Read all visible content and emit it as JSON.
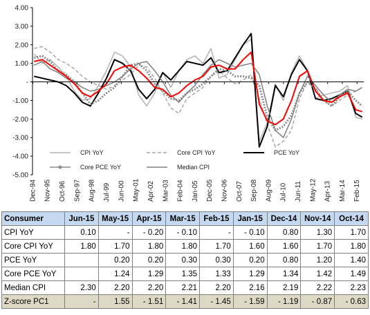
{
  "chart_data": {
    "type": "line",
    "ylim": [
      -5,
      4
    ],
    "yticks": [
      "4.00",
      "3.00",
      "2.00",
      "1.00",
      "-",
      "-1.00",
      "-2.00",
      "-3.00",
      "-4.00",
      "-5.00"
    ],
    "ytick_values": [
      4,
      3,
      2,
      1,
      0,
      -1,
      -2,
      -3,
      -4,
      -5
    ],
    "xlim": [
      1994.9,
      2015.5
    ],
    "xticks": [
      "Dec-94",
      "Nov-95",
      "Oct-96",
      "Sep-97",
      "Aug-98",
      "Jul-99",
      "Jun-00",
      "May-01",
      "Apr-02",
      "Mar-03",
      "Feb-04",
      "Jan-05",
      "Dec-05",
      "Nov-06",
      "Oct-07",
      "Sep-08",
      "Aug-09",
      "Jul-10",
      "Jun-11",
      "May-12",
      "Apr-13",
      "Mar-14",
      "Feb-15"
    ],
    "xtick_values": [
      1994.92,
      1995.83,
      1996.75,
      1997.67,
      1998.58,
      1999.5,
      2000.42,
      2001.33,
      2002.25,
      2003.17,
      2004.08,
      2005.0,
      2005.92,
      2006.83,
      2007.75,
      2008.67,
      2009.58,
      2010.5,
      2011.42,
      2012.33,
      2013.25,
      2014.17,
      2015.08
    ],
    "grid": false,
    "legend_position": "bottom-left",
    "series": [
      {
        "name": "CPI YoY",
        "color": "#b3b3b3",
        "dash": "solid",
        "x": [
          1995,
          1995.5,
          1996,
          1996.5,
          1997,
          1997.5,
          1998,
          1998.5,
          1999,
          1999.5,
          2000,
          2000.5,
          2001,
          2001.5,
          2002,
          2002.5,
          2003,
          2003.5,
          2004,
          2004.5,
          2005,
          2005.5,
          2006,
          2006.5,
          2007,
          2007.5,
          2008,
          2008.5,
          2009,
          2009.5,
          2010,
          2010.5,
          2011,
          2011.5,
          2012,
          2012.5,
          2013,
          2013.5,
          2014,
          2014.5,
          2015,
          2015.4
        ],
        "y": [
          1.5,
          1.0,
          1.2,
          0.8,
          0.3,
          -0.5,
          -1.0,
          -0.9,
          -0.2,
          0.6,
          1.6,
          1.4,
          0.8,
          -0.7,
          -1.3,
          -0.6,
          0.5,
          -0.3,
          0.6,
          1.2,
          1.4,
          1.0,
          1.8,
          0.2,
          0.4,
          1.2,
          2.0,
          2.3,
          -3.2,
          -2.2,
          -0.1,
          -1.0,
          0.5,
          1.4,
          0.6,
          -0.9,
          -0.7,
          -0.6,
          -0.5,
          -0.2,
          -1.9,
          -2.0
        ]
      },
      {
        "name": "Core CPI YoY",
        "color": "#a6a6a6",
        "dash": "dashed",
        "x": [
          1995,
          1995.5,
          1996,
          1996.5,
          1997,
          1997.5,
          1998,
          1998.5,
          1999,
          1999.5,
          2000,
          2000.5,
          2001,
          2001.5,
          2002,
          2002.5,
          2003,
          2003.5,
          2004,
          2004.5,
          2005,
          2005.5,
          2006,
          2006.5,
          2007,
          2007.5,
          2008,
          2008.5,
          2009,
          2009.5,
          2010,
          2010.5,
          2011,
          2011.5,
          2012,
          2012.5,
          2013,
          2013.5,
          2014,
          2014.5,
          2015,
          2015.4
        ],
        "y": [
          1.8,
          1.9,
          1.6,
          1.2,
          1.0,
          0.7,
          0.3,
          0.0,
          -0.2,
          -0.4,
          -0.2,
          0.1,
          0.4,
          0.9,
          0.8,
          0.2,
          -0.6,
          -1.4,
          -1.7,
          -0.9,
          -0.6,
          -0.3,
          0.3,
          0.6,
          0.2,
          -0.1,
          0.1,
          0.4,
          -0.9,
          -2.3,
          -3.5,
          -3.2,
          -2.6,
          -0.9,
          0.0,
          -0.3,
          -1.0,
          -1.3,
          -1.0,
          -0.7,
          -0.5,
          -0.3
        ]
      },
      {
        "name": "PCE YoY",
        "color": "#000000",
        "dash": "solid",
        "x": [
          1995,
          1995.5,
          1996,
          1996.5,
          1997,
          1997.5,
          1998,
          1998.5,
          1999,
          1999.5,
          2000,
          2000.5,
          2001,
          2001.5,
          2002,
          2002.5,
          2003,
          2003.5,
          2004,
          2004.5,
          2005,
          2005.5,
          2006,
          2006.5,
          2007,
          2007.5,
          2008,
          2008.5,
          2009,
          2009.5,
          2010,
          2010.5,
          2011,
          2011.5,
          2012,
          2012.5,
          2013,
          2013.5,
          2014,
          2014.5,
          2015,
          2015.4
        ],
        "y": [
          0.3,
          0.2,
          0.1,
          0.0,
          -0.2,
          -0.6,
          -1.1,
          -1.3,
          -0.6,
          0.2,
          1.2,
          1.0,
          0.6,
          -0.4,
          -0.9,
          -0.4,
          0.5,
          0.1,
          0.6,
          1.1,
          1.0,
          0.9,
          1.3,
          0.5,
          0.6,
          1.3,
          2.0,
          2.6,
          -3.5,
          -2.4,
          -0.2,
          -0.8,
          0.4,
          1.2,
          0.6,
          -0.9,
          -1.0,
          -0.9,
          -0.7,
          -0.5,
          -1.7,
          -1.9
        ]
      },
      {
        "name": "Core PCE YoY",
        "color": "#8c8c8c",
        "dash": "dotted",
        "x": [
          1995,
          1995.5,
          1996,
          1996.5,
          1997,
          1997.5,
          1998,
          1998.5,
          1999,
          1999.5,
          2000,
          2000.5,
          2001,
          2001.5,
          2002,
          2002.5,
          2003,
          2003.5,
          2004,
          2004.5,
          2005,
          2005.5,
          2006,
          2006.5,
          2007,
          2007.5,
          2008,
          2008.5,
          2009,
          2009.5,
          2010,
          2010.5,
          2011,
          2011.5,
          2012,
          2012.5,
          2013,
          2013.5,
          2014,
          2014.5,
          2015,
          2015.4
        ],
        "y": [
          1.3,
          1.4,
          1.1,
          0.6,
          0.4,
          0.0,
          -0.6,
          -1.2,
          -1.0,
          -0.6,
          -0.3,
          0.3,
          0.9,
          1.0,
          0.6,
          -0.1,
          -0.5,
          -0.9,
          -1.0,
          -0.6,
          -0.4,
          -0.1,
          0.3,
          0.7,
          0.6,
          0.3,
          0.3,
          0.2,
          -0.2,
          -1.9,
          -2.6,
          -2.4,
          -1.8,
          -0.6,
          0.0,
          -0.4,
          -1.0,
          -1.3,
          -0.8,
          -0.5,
          -1.0,
          -1.3
        ]
      },
      {
        "name": "Median CPI",
        "color": "#808080",
        "dash": "solid",
        "x": [
          1995,
          1995.5,
          1996,
          1996.5,
          1997,
          1997.5,
          1998,
          1998.5,
          1999,
          1999.5,
          2000,
          2000.5,
          2001,
          2001.5,
          2002,
          2002.5,
          2003,
          2003.5,
          2004,
          2004.5,
          2005,
          2005.5,
          2006,
          2006.5,
          2007,
          2007.5,
          2008,
          2008.5,
          2009,
          2009.5,
          2010,
          2010.5,
          2011,
          2011.5,
          2012,
          2012.5,
          2013,
          2013.5,
          2014,
          2014.5,
          2015,
          2015.4
        ],
        "y": [
          0.9,
          1.1,
          0.7,
          0.5,
          0.2,
          0.0,
          -0.3,
          -0.5,
          -0.4,
          -0.2,
          0.0,
          0.3,
          0.7,
          1.0,
          1.1,
          0.6,
          0.0,
          -0.7,
          -1.1,
          -0.6,
          -0.2,
          0.4,
          0.9,
          1.2,
          1.0,
          0.8,
          0.9,
          1.0,
          0.4,
          -1.3,
          -2.6,
          -3.0,
          -2.0,
          -0.6,
          0.3,
          -0.2,
          -0.7,
          -1.1,
          -0.7,
          -0.4,
          -0.5,
          -0.3
        ]
      },
      {
        "name": "Z-score PC1",
        "color": "#ff0000",
        "dash": "solid",
        "x": [
          1995,
          1995.5,
          1996,
          1996.5,
          1997,
          1997.5,
          1998,
          1998.5,
          1999,
          1999.5,
          2000,
          2000.5,
          2001,
          2001.5,
          2002,
          2002.5,
          2003,
          2003.5,
          2004,
          2004.5,
          2005,
          2005.5,
          2006,
          2006.5,
          2007,
          2007.5,
          2008,
          2008.5,
          2009,
          2009.5,
          2010,
          2010.5,
          2011,
          2011.5,
          2012,
          2012.5,
          2013,
          2013.5,
          2014,
          2014.5,
          2015,
          2015.4
        ],
        "y": [
          1.1,
          1.2,
          0.9,
          0.6,
          0.3,
          -0.1,
          -0.6,
          -0.8,
          -0.5,
          -0.1,
          0.6,
          0.8,
          0.9,
          0.6,
          0.2,
          -0.3,
          -0.4,
          -0.8,
          -0.6,
          -0.2,
          0.1,
          0.3,
          0.8,
          0.9,
          0.7,
          0.7,
          1.2,
          1.6,
          -1.2,
          -2.1,
          -2.3,
          -2.0,
          -1.0,
          0.3,
          0.6,
          -0.5,
          -1.0,
          -1.1,
          -0.8,
          -0.6,
          -1.5,
          -1.6
        ]
      }
    ]
  },
  "table": {
    "headers": [
      "Consumer",
      "Jun-15",
      "May-15",
      "Apr-15",
      "Mar-15",
      "Feb-15",
      "Jan-15",
      "Dec-14",
      "Nov-14",
      "Oct-14"
    ],
    "rows": [
      {
        "label": "CPI YoY",
        "values": [
          "0.10",
          "-",
          "- 0.20",
          "- 0.10",
          "-",
          "- 0.10",
          "0.80",
          "1.30",
          "1.70"
        ]
      },
      {
        "label": "Core CPI YoY",
        "values": [
          "1.80",
          "1.70",
          "1.80",
          "1.80",
          "1.70",
          "1.60",
          "1.60",
          "1.70",
          "1.80"
        ]
      },
      {
        "label": "PCE YoY",
        "values": [
          "",
          "0.20",
          "0.20",
          "0.30",
          "0.30",
          "0.20",
          "0.80",
          "1.20",
          "1.40"
        ]
      },
      {
        "label": "Core PCE YoY",
        "values": [
          "",
          "1.24",
          "1.29",
          "1.35",
          "1.33",
          "1.29",
          "1.34",
          "1.42",
          "1.49"
        ]
      },
      {
        "label": "Median CPI",
        "values": [
          "2.30",
          "2.20",
          "2.20",
          "2.21",
          "2.20",
          "2.16",
          "2.19",
          "2.22",
          "2.23"
        ]
      },
      {
        "label": "Z-score PC1",
        "values": [
          "-",
          "1.55",
          "- 1.51",
          "- 1.41",
          "- 1.45",
          "- 1.59",
          "- 1.19",
          "- 0.87",
          "- 0.63"
        ]
      }
    ]
  }
}
